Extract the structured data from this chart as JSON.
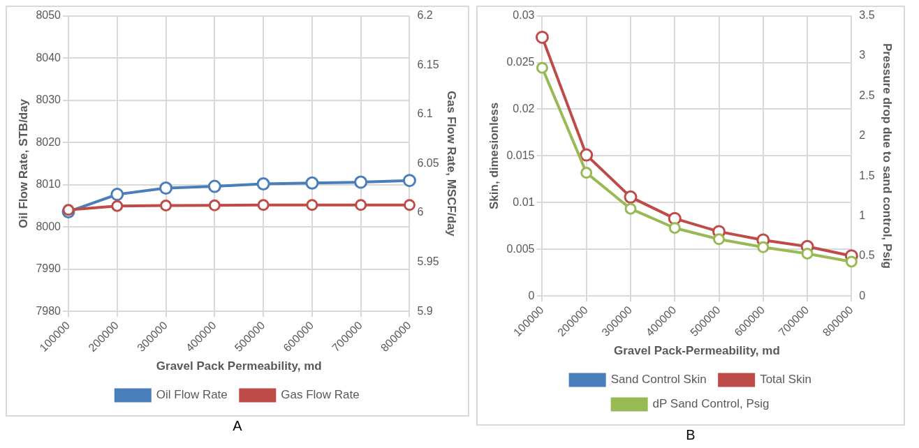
{
  "chart_data": [
    {
      "type": "line",
      "xlabel": "Gravel Pack Permeability, md",
      "ylabel": "Oil Flow Rate, STB/day",
      "y2label": "Gas Flow Rate, MSCF/day",
      "categories": [
        "100000",
        "200000",
        "300000",
        "400000",
        "500000",
        "600000",
        "700000",
        "800000"
      ],
      "series": [
        {
          "name": "Oil Flow Rate",
          "color": "#4a7ebb",
          "values": [
            8003.6,
            8007.7,
            8009.2,
            8009.6,
            8010.2,
            8010.4,
            8010.6,
            8011
          ]
        },
        {
          "name": "Gas Flow Rate",
          "color": "#be4b48",
          "axis": "y2",
          "values": [
            6.003,
            6.007,
            6.0074,
            6.0076,
            6.008,
            6.008,
            6.008,
            6.008
          ]
        }
      ],
      "ylim": [
        7980,
        8050
      ],
      "yticks": [
        7980,
        7990,
        8000,
        8010,
        8020,
        8030,
        8040,
        8050
      ],
      "y2lim": [
        5.9,
        6.2
      ],
      "y2ticks": [
        5.9,
        5.95,
        6,
        6.05,
        6.1,
        6.15,
        6.2
      ],
      "grid": true,
      "legend": "bottom",
      "marker": "circle",
      "line_style": "solid",
      "annotations": [
        "A"
      ]
    },
    {
      "type": "line",
      "xlabel": "Gravel Pack-Permeability, md",
      "ylabel": "Skin, dimesionless",
      "y2label": "Pressure drop due to sand control, Psig",
      "categories": [
        "100000",
        "200000",
        "300000",
        "400000",
        "500000",
        "600000",
        "700000",
        "800000"
      ],
      "series": [
        {
          "name": "Sand Control Skin",
          "color": "#4a7ebb",
          "values": [
            null,
            null,
            null,
            null,
            null,
            null,
            null,
            null
          ]
        },
        {
          "name": "Total Skin",
          "color": "#be4b48",
          "values": [
            0.0277,
            0.0151,
            0.0106,
            0.0083,
            0.0069,
            0.006,
            0.0053,
            0.0043
          ]
        },
        {
          "name": "dP Sand Control, Psig",
          "color": "#98b954",
          "axis": "y2",
          "values": [
            2.85,
            1.54,
            1.09,
            0.85,
            0.71,
            0.61,
            0.53,
            0.43
          ]
        }
      ],
      "ylim": [
        0,
        0.03
      ],
      "yticks": [
        0,
        0.005,
        0.01,
        0.015,
        0.02,
        0.025,
        0.03
      ],
      "y2lim": [
        0,
        3.5
      ],
      "y2ticks": [
        0,
        0.5,
        1,
        1.5,
        2,
        2.5,
        3,
        3.5
      ],
      "grid": true,
      "legend": "bottom",
      "marker": "circle",
      "line_style": "solid",
      "annotations": [
        "B"
      ]
    }
  ]
}
